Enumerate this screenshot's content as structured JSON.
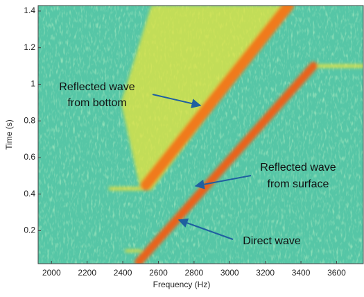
{
  "chart_data": {
    "type": "spectrogram",
    "xlabel": "Frequency (Hz)",
    "ylabel": "Time (s)",
    "xlim": [
      1925,
      3750
    ],
    "ylim": [
      0.02,
      1.43
    ],
    "xticks": [
      2000,
      2200,
      2400,
      2600,
      2800,
      3000,
      3200,
      3400,
      3600
    ],
    "yticks": [
      0.2,
      0.4,
      0.6,
      0.8,
      1,
      1.2,
      1.4
    ],
    "series": [
      {
        "kind": "area",
        "color": "#e6e43c",
        "x": [
          2500,
          2390,
          2560,
          3350,
          2560
        ],
        "y": [
          0.42,
          0.9,
          1.43,
          1.43,
          0.42
        ]
      },
      {
        "kind": "line",
        "color": "#d8dc48",
        "x": [
          2330,
          2510
        ],
        "y": [
          0.43,
          0.43
        ]
      },
      {
        "kind": "line",
        "color": "#d8dc48",
        "x": [
          2420,
          2500
        ],
        "y": [
          0.09,
          0.09
        ]
      },
      {
        "kind": "line",
        "color": "#d6e050",
        "x": [
          3470,
          3750
        ],
        "y": [
          1.1,
          1.1
        ]
      },
      {
        "kind": "line",
        "color": "#f07a1a",
        "x": [
          2530,
          3330
        ],
        "y": [
          0.45,
          1.43
        ]
      },
      {
        "kind": "line",
        "color": "#e8641a",
        "x": [
          2490,
          3470
        ],
        "y": [
          0.03,
          1.1
        ]
      }
    ],
    "annotations": [
      "Reflected wave",
      "from bottom",
      "Reflected wave",
      "from surface",
      "Direct wave"
    ]
  }
}
